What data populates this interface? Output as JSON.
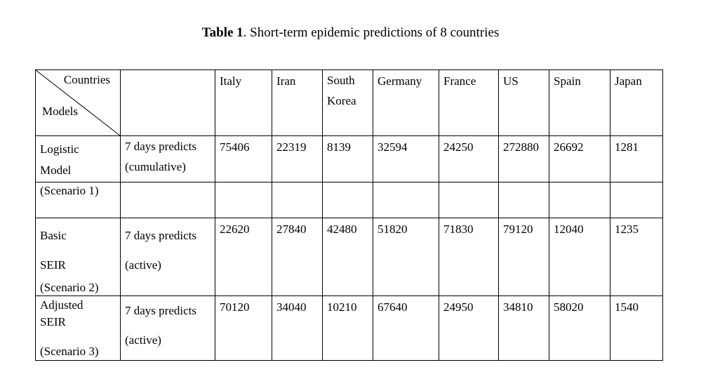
{
  "caption": {
    "label": "Table 1",
    "text": ". Short-term epidemic predictions of 8 countries"
  },
  "corner": {
    "top": "Countries",
    "bottom": "Models"
  },
  "countries": [
    "Italy",
    "Iran",
    "South Korea",
    "Germany",
    "France",
    "US",
    "Spain",
    "Japan"
  ],
  "rows": [
    {
      "model": [
        "Logistic",
        "Model"
      ],
      "desc": [
        "7 days predicts",
        "(cumulative)"
      ],
      "values": [
        "75406",
        "22319",
        "8139",
        "32594",
        "24250",
        "272880",
        "26692",
        "1281"
      ]
    },
    {
      "model": [
        "(Scenario 1)"
      ],
      "desc": [],
      "values": [
        "",
        "",
        "",
        "",
        "",
        "",
        "",
        ""
      ]
    },
    {
      "model": [
        "Basic",
        "SEIR",
        "(Scenario 2)"
      ],
      "desc": [
        "7 days predicts",
        "(active)"
      ],
      "values": [
        "22620",
        "27840",
        "42480",
        "51820",
        "71830",
        "79120",
        "12040",
        "1235"
      ]
    },
    {
      "model": [
        "Adjusted",
        "SEIR",
        "(Scenario 3)"
      ],
      "desc": [
        "7 days predicts",
        "(active)"
      ],
      "values": [
        "70120",
        "34040",
        "10210",
        "67640",
        "24950",
        "34810",
        "58020",
        "1540"
      ]
    }
  ]
}
